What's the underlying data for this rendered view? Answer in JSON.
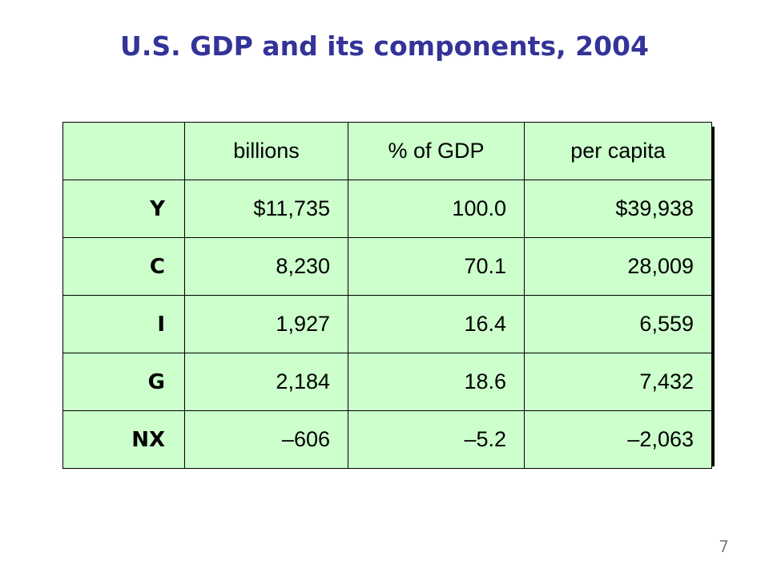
{
  "slide": {
    "title": "U.S. GDP and its components, 2004",
    "page_number": "7"
  },
  "table": {
    "headers": [
      "",
      "billions",
      "% of GDP",
      "per capita"
    ],
    "rows": [
      {
        "label": "Y",
        "billions": "$11,735",
        "pct_gdp": "100.0",
        "per_capita": "$39,938"
      },
      {
        "label": "C",
        "billions": "8,230",
        "pct_gdp": "70.1",
        "per_capita": "28,009"
      },
      {
        "label": "I",
        "billions": "1,927",
        "pct_gdp": "16.4",
        "per_capita": "6,559"
      },
      {
        "label": "G",
        "billions": "2,184",
        "pct_gdp": "18.6",
        "per_capita": "7,432"
      },
      {
        "label": "NX",
        "billions": "–606",
        "pct_gdp": "–5.2",
        "per_capita": "–2,063"
      }
    ]
  },
  "colors": {
    "title": "#333399",
    "table_background": "#ccffcc",
    "page_number": "#808080"
  }
}
